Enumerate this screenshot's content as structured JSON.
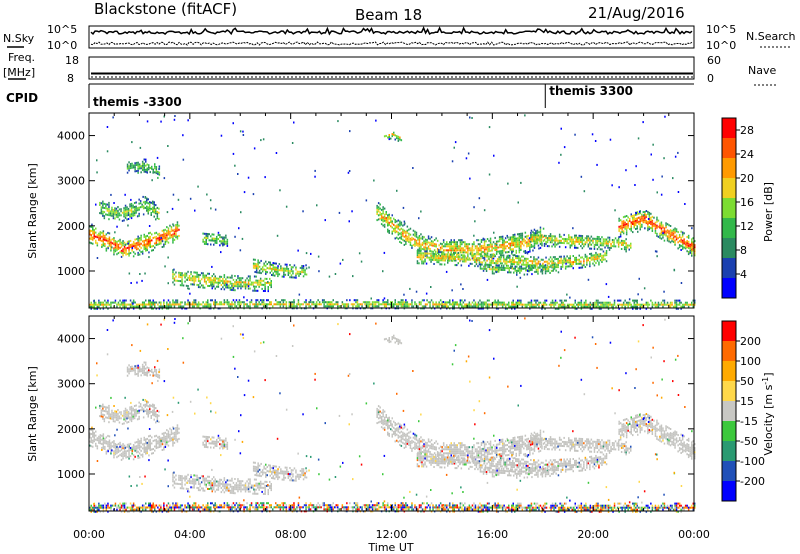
{
  "header": {
    "station": "Blackstone (fitACF)",
    "beam": "Beam 18",
    "date": "21/Aug/2016"
  },
  "noise_panel": {
    "left_label": "N.Sky",
    "right_label": "N.Search",
    "left_ticks": [
      "10^5",
      "10^0"
    ],
    "right_ticks": [
      "10^5",
      "10^0"
    ]
  },
  "freq_panel": {
    "left_label_top": "Freq.",
    "left_label_bottom": "[MHz]",
    "right_label": "Nave",
    "left_ticks": [
      "18",
      "8"
    ],
    "right_ticks": [
      "60",
      "0"
    ],
    "frequency_mhz": 10.5
  },
  "cpid_panel": {
    "label": "CPID",
    "segments": [
      {
        "label": "themis -3300",
        "start_hour": 0
      },
      {
        "label": "themis 3300",
        "start_hour": 18.1
      }
    ]
  },
  "colors": {
    "power": [
      "#0000ff",
      "#1a40b0",
      "#2a8a60",
      "#32b84a",
      "#7cdc32",
      "#f0d020",
      "#ff9a00",
      "#ff5500",
      "#ff0000"
    ],
    "velocity": [
      "#ff0000",
      "#ff6a00",
      "#ffaa00",
      "#ffd84a",
      "#c8c8c4",
      "#3cc83c",
      "#2a9a72",
      "#2050b8",
      "#0000ff"
    ],
    "ground_scatter": "#c4c4c0"
  },
  "chart_data": [
    {
      "type": "heatmap",
      "name": "power",
      "xlabel": "",
      "ylabel": "Slant Range [km]",
      "xlim": [
        0,
        24
      ],
      "ylim": [
        180,
        4500
      ],
      "y_ticks": [
        1000,
        2000,
        3000,
        4000
      ],
      "colorbar": {
        "label": "Power [dB]",
        "ticks": [
          4,
          8,
          12,
          16,
          20,
          24,
          28
        ],
        "range": [
          0,
          30
        ]
      },
      "bands": [
        {
          "t": [
            0,
            0.8,
            1.3,
            2.2,
            3.0,
            3.6
          ],
          "r": [
            1780,
            1620,
            1450,
            1600,
            1750,
            1900
          ],
          "w": 220,
          "intensity": 0.75
        },
        {
          "t": [
            0.4,
            1.2,
            2.2,
            2.8
          ],
          "r": [
            2350,
            2250,
            2420,
            2250
          ],
          "w": 180,
          "intensity": 0.3
        },
        {
          "t": [
            1.5,
            2.2,
            2.8
          ],
          "r": [
            3250,
            3320,
            3150
          ],
          "w": 140,
          "intensity": 0.2
        },
        {
          "t": [
            3.3,
            4.5,
            5.8,
            7.2
          ],
          "r": [
            850,
            780,
            720,
            700
          ],
          "w": 170,
          "intensity": 0.45
        },
        {
          "t": [
            6.5,
            7.5,
            8.6
          ],
          "r": [
            1100,
            1000,
            950
          ],
          "w": 140,
          "intensity": 0.4
        },
        {
          "t": [
            4.5,
            5.5
          ],
          "r": [
            1700,
            1650
          ],
          "w": 120,
          "intensity": 0.3
        },
        {
          "t": [
            11.4,
            12.2,
            13.0,
            14.0,
            15.5,
            17.2,
            18.0
          ],
          "r": [
            2300,
            1900,
            1600,
            1450,
            1450,
            1600,
            1750
          ],
          "w": 240,
          "intensity": 0.55
        },
        {
          "t": [
            13.0,
            14.8,
            16.5,
            18.0,
            19.5,
            20.5
          ],
          "r": [
            1300,
            1250,
            1200,
            1150,
            1200,
            1300
          ],
          "w": 150,
          "intensity": 0.5
        },
        {
          "t": [
            15.5,
            17.0,
            18.5
          ],
          "r": [
            1050,
            1000,
            1050
          ],
          "w": 110,
          "intensity": 0.3
        },
        {
          "t": [
            17.5,
            19.0,
            20.5,
            21.5
          ],
          "r": [
            1700,
            1650,
            1600,
            1550
          ],
          "w": 150,
          "intensity": 0.45
        },
        {
          "t": [
            21.0,
            22.0,
            23.0,
            24.0
          ],
          "r": [
            1950,
            2150,
            1800,
            1500
          ],
          "w": 220,
          "intensity": 0.75
        },
        {
          "t": [
            11.7,
            12.0,
            12.4
          ],
          "r": [
            3950,
            4000,
            3900
          ],
          "w": 80,
          "intensity": 0.5
        },
        {
          "t": [
            0,
            6,
            12,
            18,
            24
          ],
          "r": [
            230,
            240,
            240,
            230,
            230
          ],
          "w": 90,
          "intensity": 0.4
        }
      ]
    },
    {
      "type": "heatmap",
      "name": "velocity",
      "xlabel": "Time UT",
      "ylabel": "Slant Range [km]",
      "xlim": [
        0,
        24
      ],
      "ylim": [
        180,
        4500
      ],
      "y_ticks": [
        1000,
        2000,
        3000,
        4000
      ],
      "x_ticks": [
        "00:00",
        "04:00",
        "08:00",
        "12:00",
        "16:00",
        "20:00",
        "00:00"
      ],
      "colorbar": {
        "label": "Velocity [m s^-1]",
        "ticks": [
          200,
          100,
          50,
          15,
          -15,
          -50,
          -100,
          -200
        ]
      }
    }
  ]
}
